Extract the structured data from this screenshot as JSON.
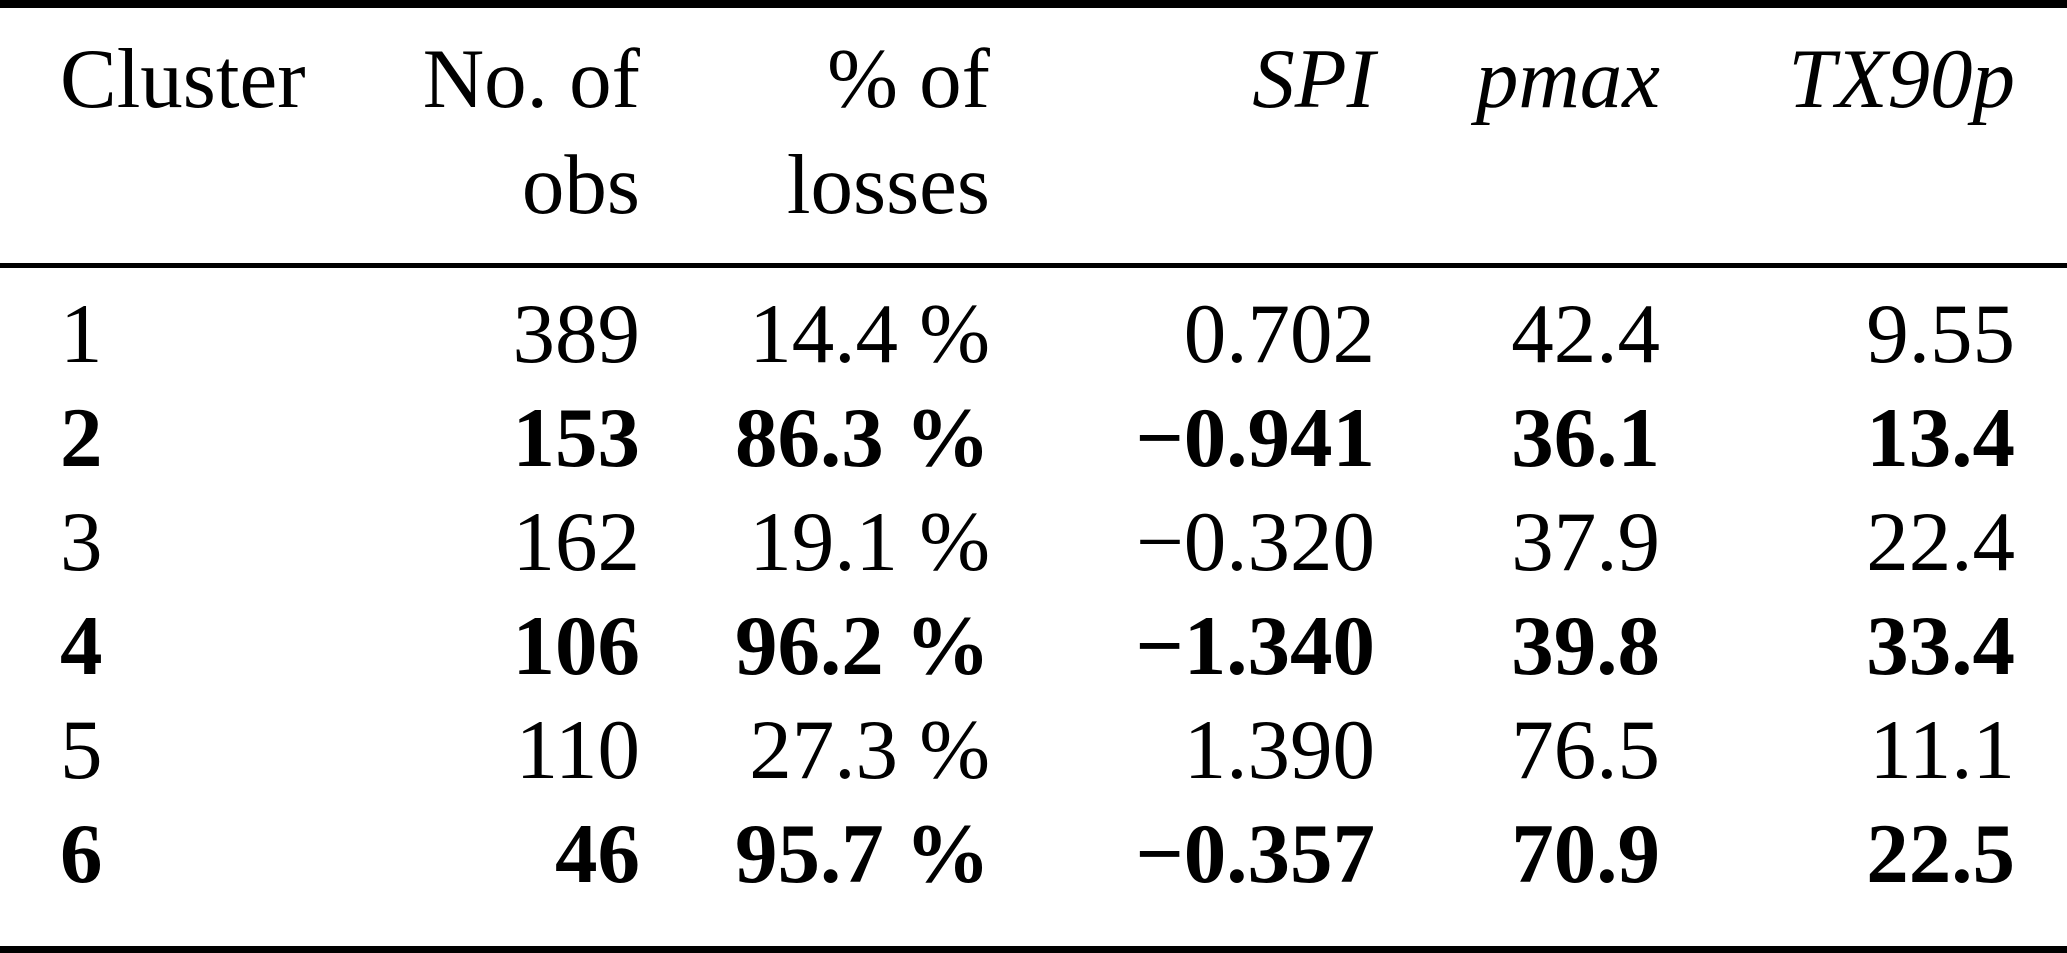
{
  "page": {
    "background": "#ffffff",
    "text_color": "#000000",
    "rule_color": "#000000"
  },
  "table": {
    "header": {
      "cluster": "Cluster",
      "obs_line1": "No. of",
      "obs_line2": "obs",
      "losses_line1": "% of",
      "losses_line2": "losses",
      "spi": "SPI",
      "pmax": "pmax",
      "tx90p": "TX90p"
    },
    "rows": [
      {
        "cluster": "1",
        "obs": "389",
        "losses": "14.4 %",
        "spi": "0.702",
        "pmax": "42.4",
        "tx90p": "9.55",
        "bold": false
      },
      {
        "cluster": "2",
        "obs": "153",
        "losses": "86.3 %",
        "spi": "−0.941",
        "pmax": "36.1",
        "tx90p": "13.4",
        "bold": true
      },
      {
        "cluster": "3",
        "obs": "162",
        "losses": "19.1 %",
        "spi": "−0.320",
        "pmax": "37.9",
        "tx90p": "22.4",
        "bold": false
      },
      {
        "cluster": "4",
        "obs": "106",
        "losses": "96.2 %",
        "spi": "−1.340",
        "pmax": "39.8",
        "tx90p": "33.4",
        "bold": true
      },
      {
        "cluster": "5",
        "obs": "110",
        "losses": "27.3 %",
        "spi": "1.390",
        "pmax": "76.5",
        "tx90p": "11.1",
        "bold": false
      },
      {
        "cluster": "6",
        "obs": "46",
        "losses": "95.7 %",
        "spi": "−0.357",
        "pmax": "70.9",
        "tx90p": "22.5",
        "bold": true
      }
    ]
  },
  "chart_data": {
    "type": "table",
    "columns": [
      "Cluster",
      "No. of obs",
      "% of losses",
      "SPI",
      "pmax",
      "TX90p"
    ],
    "rows": [
      [
        1,
        389,
        "14.4 %",
        0.702,
        42.4,
        9.55
      ],
      [
        2,
        153,
        "86.3 %",
        -0.941,
        36.1,
        13.4
      ],
      [
        3,
        162,
        "19.1 %",
        -0.32,
        37.9,
        22.4
      ],
      [
        4,
        106,
        "96.2 %",
        -1.34,
        39.8,
        33.4
      ],
      [
        5,
        110,
        "27.3 %",
        1.39,
        76.5,
        11.1
      ],
      [
        6,
        46,
        "95.7 %",
        -0.357,
        70.9,
        22.5
      ]
    ],
    "bold_rows": [
      2,
      4,
      6
    ]
  }
}
